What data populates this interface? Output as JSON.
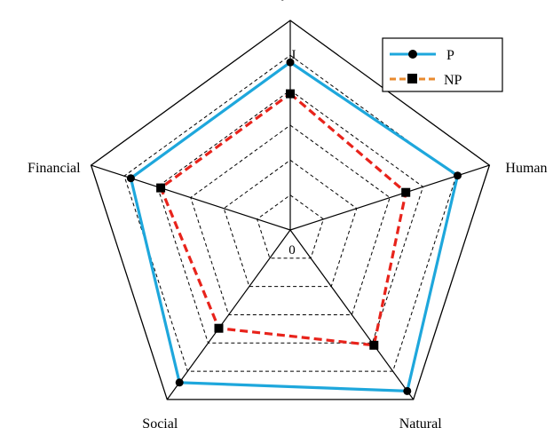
{
  "chart_data": {
    "type": "radar",
    "axes": [
      "Physical",
      "Human",
      "Natural",
      "Social",
      "Financial"
    ],
    "range": [
      0,
      1
    ],
    "grid_levels": 6,
    "tick_labels": {
      "min": "0",
      "max": "I"
    },
    "legend_position": "top-right",
    "series": [
      {
        "name": "P",
        "color": "#1EA7DC",
        "marker": "circle",
        "line": "solid",
        "values": [
          0.8,
          0.84,
          0.95,
          0.9,
          0.8
        ]
      },
      {
        "name": "NP",
        "color": "#E8231B",
        "legend_color": "#E98A2E",
        "marker": "square",
        "line": "dashed",
        "values": [
          0.65,
          0.58,
          0.68,
          0.58,
          0.65
        ]
      }
    ]
  }
}
